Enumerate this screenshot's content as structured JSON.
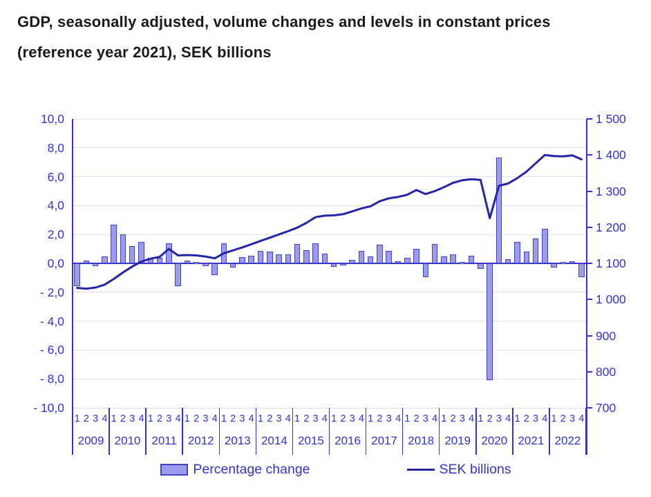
{
  "title": {
    "line1": "GDP, seasonally adjusted, volume changes and levels in constant prices",
    "line2": "(reference year 2021), SEK billions"
  },
  "legend": {
    "bar_label": "Percentage change",
    "line_label": "SEK billions"
  },
  "colors": {
    "axis_text_blue": "#3333cc",
    "bar_fill": "#9c9cec",
    "bar_border": "#4040c8",
    "line_color": "#2323aa",
    "gridline": "#dedef6",
    "title_text": "#1a1a1a"
  },
  "chart_data": {
    "type": "bar+line",
    "title": "GDP, seasonally adjusted, volume changes and levels in constant prices (reference year 2021), SEK billions",
    "grid": "on",
    "legend_position": "bottom",
    "years": [
      "2009",
      "2010",
      "2011",
      "2012",
      "2013",
      "2014",
      "2015",
      "2016",
      "2017",
      "2018",
      "2019",
      "2020",
      "2021",
      "2022"
    ],
    "quarter_labels": [
      "1",
      "2",
      "3",
      "4"
    ],
    "left_axis": {
      "range": [
        -10,
        10
      ],
      "tick_values": [
        10,
        8,
        6,
        4,
        2,
        0,
        -2,
        -4,
        -6,
        -8,
        -10
      ],
      "tick_labels": [
        "10,0",
        "8,0",
        "6,0",
        "4,0",
        "2,0",
        "0,0",
        "- 2,0",
        "- 4,0",
        "- 6,0",
        "- 8,0",
        "- 10,0"
      ]
    },
    "right_axis": {
      "range": [
        700,
        1500
      ],
      "tick_values": [
        1500,
        1400,
        1300,
        1200,
        1100,
        1000,
        900,
        800,
        700
      ],
      "tick_labels": [
        "1 500",
        "1 400",
        "1 300",
        "1 200",
        "1 100",
        "1 000",
        "900",
        "800",
        "700"
      ]
    },
    "series": [
      {
        "name": "Percentage change",
        "type": "bar",
        "axis": "left",
        "values": [
          -1.6,
          0.2,
          -0.2,
          0.5,
          2.7,
          2.0,
          1.2,
          1.5,
          0.4,
          0.4,
          1.4,
          -1.6,
          0.2,
          0.1,
          -0.2,
          -0.8,
          1.4,
          -0.3,
          0.45,
          0.55,
          0.85,
          0.8,
          0.6,
          0.6,
          1.35,
          0.9,
          1.4,
          0.65,
          -0.25,
          -0.1,
          0.25,
          0.85,
          0.5,
          1.3,
          0.85,
          0.15,
          0.4,
          1.0,
          -0.95,
          1.35,
          0.5,
          0.6,
          0.1,
          0.55,
          -0.4,
          -8.1,
          7.3,
          0.3,
          1.5,
          0.8,
          1.7,
          2.4,
          -0.3,
          0.1,
          0.15,
          -0.95
        ]
      },
      {
        "name": "SEK billions",
        "type": "line",
        "axis": "right",
        "values": [
          1032,
          1030,
          1033,
          1041,
          1057,
          1075,
          1091,
          1105,
          1113,
          1118,
          1140,
          1122,
          1123,
          1122,
          1119,
          1114,
          1128,
          1136,
          1144,
          1153,
          1162,
          1171,
          1180,
          1189,
          1199,
          1212,
          1228,
          1232,
          1233,
          1236,
          1244,
          1252,
          1258,
          1272,
          1280,
          1284,
          1290,
          1303,
          1292,
          1300,
          1311,
          1323,
          1330,
          1333,
          1331,
          1225,
          1315,
          1321,
          1336,
          1354,
          1377,
          1400,
          1397,
          1396,
          1399,
          1388
        ]
      }
    ]
  }
}
